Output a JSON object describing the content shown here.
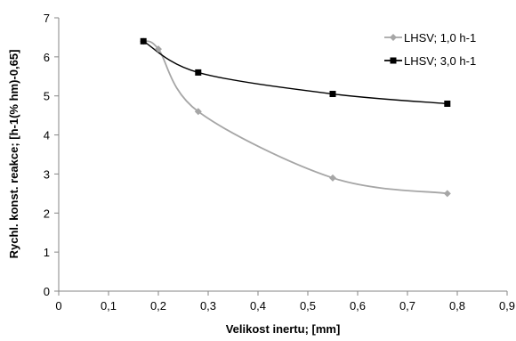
{
  "chart_data": {
    "type": "line",
    "xlabel": "Velikost inertu; [mm]",
    "ylabel": "Rychl. konst. reakce; [h-1(% hm)-0,65]",
    "xlim": [
      0,
      0.9
    ],
    "ylim": [
      0,
      7
    ],
    "x_ticks": [
      "0",
      "0,1",
      "0,2",
      "0,3",
      "0,4",
      "0,5",
      "0,6",
      "0,7",
      "0,8",
      "0,9"
    ],
    "y_ticks": [
      "0",
      "1",
      "2",
      "3",
      "4",
      "5",
      "6",
      "7"
    ],
    "grid": false,
    "legend_position": "top-right",
    "smooth": true,
    "series": [
      {
        "name": "LHSV; 1,0 h-1",
        "color": "#a6a6a6",
        "marker": "diamond",
        "x": [
          0.17,
          0.2,
          0.28,
          0.55,
          0.78
        ],
        "y": [
          6.4,
          6.2,
          4.6,
          2.9,
          2.5
        ]
      },
      {
        "name": "LHSV; 3,0 h-1",
        "color": "#000000",
        "marker": "square",
        "x": [
          0.17,
          0.28,
          0.55,
          0.78
        ],
        "y": [
          6.4,
          5.6,
          5.05,
          4.8
        ]
      }
    ]
  }
}
